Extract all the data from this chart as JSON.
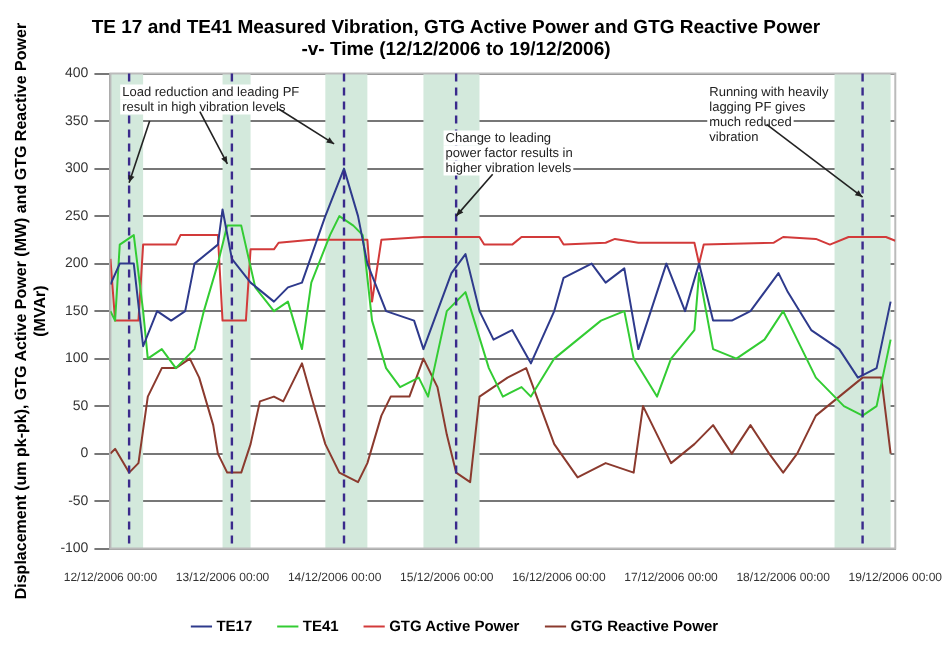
{
  "chart_data": {
    "type": "line",
    "title": "TE 17 and TE41 Measured Vibration, GTG Active Power and GTG Reactive Power -v- Time (12/12/2006 to 19/12/2006)",
    "ylabel": "Displacement (um pk-pk), GTG Active Power (MW) and GTG Reactive Power (MVAr)",
    "series": [
      {
        "name": "TE17",
        "color": "#2e3a8c",
        "x": [
          "2006-12-12T00:00",
          "2006-12-12T02:00",
          "2006-12-12T05:00",
          "2006-12-12T07:00",
          "2006-12-12T10:00",
          "2006-12-12T13:00",
          "2006-12-12T16:00",
          "2006-12-12T18:00",
          "2006-12-12T23:00",
          "2006-12-13T00:00",
          "2006-12-13T02:00",
          "2006-12-13T06:00",
          "2006-12-13T11:00",
          "2006-12-13T14:00",
          "2006-12-13T17:00",
          "2006-12-13T22:00",
          "2006-12-14T02:00",
          "2006-12-14T05:00",
          "2006-12-14T07:00",
          "2006-12-14T11:00",
          "2006-12-14T17:00",
          "2006-12-14T19:00",
          "2006-12-14T22:00",
          "2006-12-15T01:00",
          "2006-12-15T04:00",
          "2006-12-15T07:00",
          "2006-12-15T10:00",
          "2006-12-15T14:00",
          "2006-12-15T18:00",
          "2006-12-15T23:00",
          "2006-12-16T01:00",
          "2006-12-16T07:00",
          "2006-12-16T10:00",
          "2006-12-16T14:00",
          "2006-12-16T17:00",
          "2006-12-16T23:00",
          "2006-12-17T03:00",
          "2006-12-17T06:00",
          "2006-12-17T09:00",
          "2006-12-17T13:00",
          "2006-12-17T17:00",
          "2006-12-17T23:00",
          "2006-12-18T01:00",
          "2006-12-18T06:00",
          "2006-12-18T12:00",
          "2006-12-18T16:00",
          "2006-12-18T20:00",
          "2006-12-18T23:00"
        ],
        "values": [
          178,
          200,
          200,
          113,
          150,
          140,
          150,
          200,
          220,
          257,
          205,
          180,
          160,
          175,
          180,
          250,
          300,
          250,
          200,
          150,
          140,
          110,
          150,
          190,
          210,
          150,
          120,
          130,
          95,
          150,
          185,
          200,
          180,
          195,
          110,
          200,
          150,
          200,
          140,
          140,
          150,
          190,
          170,
          130,
          110,
          80,
          90,
          160
        ]
      },
      {
        "name": "TE41",
        "color": "#33cc33",
        "x": [
          "2006-12-12T00:00",
          "2006-12-12T01:00",
          "2006-12-12T02:00",
          "2006-12-12T05:00",
          "2006-12-12T07:00",
          "2006-12-12T08:00",
          "2006-12-12T11:00",
          "2006-12-12T14:00",
          "2006-12-12T18:00",
          "2006-12-12T20:00",
          "2006-12-12T23:00",
          "2006-12-13T01:00",
          "2006-12-13T04:00",
          "2006-12-13T07:00",
          "2006-12-13T11:00",
          "2006-12-13T14:00",
          "2006-12-13T17:00",
          "2006-12-13T19:00",
          "2006-12-13T23:00",
          "2006-12-14T01:00",
          "2006-12-14T04:00",
          "2006-12-14T06:00",
          "2006-12-14T08:00",
          "2006-12-14T11:00",
          "2006-12-14T14:00",
          "2006-12-14T18:00",
          "2006-12-14T20:00",
          "2006-12-15T00:00",
          "2006-12-15T04:00",
          "2006-12-15T09:00",
          "2006-12-15T12:00",
          "2006-12-15T16:00",
          "2006-12-15T18:00",
          "2006-12-15T23:00",
          "2006-12-16T04:00",
          "2006-12-16T09:00",
          "2006-12-16T14:00",
          "2006-12-16T16:00",
          "2006-12-16T21:00",
          "2006-12-17T00:00",
          "2006-12-17T05:00",
          "2006-12-17T06:00",
          "2006-12-17T09:00",
          "2006-12-17T14:00",
          "2006-12-17T20:00",
          "2006-12-18T00:00",
          "2006-12-18T03:00",
          "2006-12-18T07:00",
          "2006-12-18T13:00",
          "2006-12-18T17:00",
          "2006-12-18T20:00",
          "2006-12-18T23:00"
        ],
        "values": [
          150,
          140,
          220,
          230,
          150,
          100,
          110,
          90,
          110,
          150,
          200,
          240,
          240,
          175,
          150,
          160,
          110,
          180,
          230,
          250,
          240,
          230,
          140,
          90,
          70,
          80,
          60,
          150,
          170,
          90,
          60,
          70,
          60,
          100,
          120,
          140,
          150,
          100,
          60,
          100,
          130,
          190,
          110,
          100,
          120,
          150,
          120,
          80,
          50,
          40,
          50,
          120
        ]
      },
      {
        "name": "GTG Active Power",
        "color": "#d23a3a",
        "x": [
          "2006-12-12T00:00",
          "2006-12-12T01:00",
          "2006-12-12T06:00",
          "2006-12-12T07:00",
          "2006-12-12T14:00",
          "2006-12-12T15:00",
          "2006-12-12T23:00",
          "2006-12-13T00:00",
          "2006-12-13T05:00",
          "2006-12-13T06:00",
          "2006-12-13T11:00",
          "2006-12-13T12:00",
          "2006-12-13T19:00",
          "2006-12-14T07:00",
          "2006-12-14T08:00",
          "2006-12-14T10:00",
          "2006-12-14T19:00",
          "2006-12-15T07:00",
          "2006-12-15T08:00",
          "2006-12-15T14:00",
          "2006-12-15T16:00",
          "2006-12-16T00:00",
          "2006-12-16T01:00",
          "2006-12-16T10:00",
          "2006-12-16T12:00",
          "2006-12-16T17:00",
          "2006-12-17T05:00",
          "2006-12-17T06:00",
          "2006-12-17T07:00",
          "2006-12-17T22:00",
          "2006-12-18T00:00",
          "2006-12-18T07:00",
          "2006-12-18T10:00",
          "2006-12-18T14:00",
          "2006-12-18T22:00",
          "2006-12-19T00:00"
        ],
        "values": [
          205,
          140,
          140,
          220,
          220,
          230,
          230,
          140,
          140,
          215,
          215,
          222,
          225,
          225,
          160,
          225,
          228,
          228,
          220,
          220,
          228,
          228,
          220,
          222,
          226,
          222,
          222,
          200,
          220,
          222,
          228,
          226,
          220,
          228,
          228,
          224
        ]
      },
      {
        "name": "GTG Reactive Power",
        "color": "#8b3a2e",
        "x": [
          "2006-12-12T00:00",
          "2006-12-12T01:00",
          "2006-12-12T04:00",
          "2006-12-12T06:00",
          "2006-12-12T08:00",
          "2006-12-12T11:00",
          "2006-12-12T14:00",
          "2006-12-12T17:00",
          "2006-12-12T19:00",
          "2006-12-12T22:00",
          "2006-12-12T23:00",
          "2006-12-13T01:00",
          "2006-12-13T04:00",
          "2006-12-13T06:00",
          "2006-12-13T08:00",
          "2006-12-13T11:00",
          "2006-12-13T13:00",
          "2006-12-13T17:00",
          "2006-12-13T19:00",
          "2006-12-13T22:00",
          "2006-12-14T01:00",
          "2006-12-14T05:00",
          "2006-12-14T07:00",
          "2006-12-14T10:00",
          "2006-12-14T12:00",
          "2006-12-14T16:00",
          "2006-12-14T19:00",
          "2006-12-14T22:00",
          "2006-12-15T00:00",
          "2006-12-15T02:00",
          "2006-12-15T05:00",
          "2006-12-15T07:00",
          "2006-12-15T13:00",
          "2006-12-15T17:00",
          "2006-12-15T20:00",
          "2006-12-15T23:00",
          "2006-12-16T04:00",
          "2006-12-16T10:00",
          "2006-12-16T16:00",
          "2006-12-16T18:00",
          "2006-12-16T21:00",
          "2006-12-17T00:00",
          "2006-12-17T05:00",
          "2006-12-17T09:00",
          "2006-12-17T13:00",
          "2006-12-17T17:00",
          "2006-12-17T21:00",
          "2006-12-18T00:00",
          "2006-12-18T03:00",
          "2006-12-18T07:00",
          "2006-12-18T12:00",
          "2006-12-18T17:00",
          "2006-12-18T21:00",
          "2006-12-18T23:00"
        ],
        "values": [
          0,
          5,
          -20,
          -10,
          60,
          90,
          90,
          100,
          80,
          30,
          0,
          -20,
          -20,
          10,
          55,
          60,
          55,
          95,
          60,
          10,
          -20,
          -30,
          -10,
          40,
          60,
          60,
          100,
          70,
          20,
          -20,
          -30,
          60,
          80,
          90,
          50,
          10,
          -25,
          -10,
          -20,
          50,
          20,
          -10,
          10,
          30,
          0,
          30,
          0,
          -20,
          0,
          40,
          60,
          80,
          80,
          0
        ]
      }
    ],
    "xlim": [
      "2006-12-12T00:00",
      "2006-12-19T00:00"
    ],
    "xticks": [
      {
        "value": "2006-12-12T00:00",
        "label": "12/12/2006 00:00"
      },
      {
        "value": "2006-12-13T00:00",
        "label": "13/12/2006 00:00"
      },
      {
        "value": "2006-12-14T00:00",
        "label": "14/12/2006 00:00"
      },
      {
        "value": "2006-12-15T00:00",
        "label": "15/12/2006 00:00"
      },
      {
        "value": "2006-12-16T00:00",
        "label": "16/12/2006 00:00"
      },
      {
        "value": "2006-12-17T00:00",
        "label": "17/12/2006 00:00"
      },
      {
        "value": "2006-12-18T00:00",
        "label": "18/12/2006 00:00"
      },
      {
        "value": "2006-12-19T00:00",
        "label": "19/12/2006 00:00"
      }
    ],
    "ylim": [
      -100,
      400
    ],
    "yticks": [
      -100,
      -50,
      0,
      50,
      100,
      150,
      200,
      250,
      300,
      350,
      400
    ],
    "grid": "y",
    "legend": "bottom",
    "line_style": "solid",
    "marker": "none",
    "ref_lines": [
      {
        "axis": "x",
        "value": "2006-12-12T04:00",
        "color": "#3a2a8c",
        "line_style": "dashed"
      },
      {
        "axis": "x",
        "value": "2006-12-13T02:00",
        "color": "#3a2a8c",
        "line_style": "dashed"
      },
      {
        "axis": "x",
        "value": "2006-12-14T02:00",
        "color": "#3a2a8c",
        "line_style": "dashed"
      },
      {
        "axis": "x",
        "value": "2006-12-15T02:00",
        "color": "#3a2a8c",
        "line_style": "dashed"
      },
      {
        "axis": "x",
        "value": "2006-12-18T17:00",
        "color": "#3a2a8c",
        "line_style": "dashed"
      }
    ],
    "bands": [
      {
        "axis": "x",
        "from": "2006-12-12T00:00",
        "to": "2006-12-12T07:00",
        "color": "#d3e9dc"
      },
      {
        "axis": "x",
        "from": "2006-12-13T00:00",
        "to": "2006-12-13T06:00",
        "color": "#d3e9dc"
      },
      {
        "axis": "x",
        "from": "2006-12-13T22:00",
        "to": "2006-12-14T07:00",
        "color": "#d3e9dc"
      },
      {
        "axis": "x",
        "from": "2006-12-14T19:00",
        "to": "2006-12-15T07:00",
        "color": "#d3e9dc"
      },
      {
        "axis": "x",
        "from": "2006-12-18T11:00",
        "to": "2006-12-18T23:00",
        "color": "#d3e9dc"
      }
    ],
    "annotations": [
      {
        "text": "Load reduction and leading PF result in high vibration levels",
        "x": "2006-12-12T04:00",
        "y": 285
      },
      {
        "text": "Change to leading power factor results in higher vibration levels",
        "x": "2006-12-15T02:00",
        "y": 250
      },
      {
        "text": "Running with heavily lagging PF gives much reduced vibration",
        "x": "2006-12-18T17:00",
        "y": 270
      }
    ]
  }
}
